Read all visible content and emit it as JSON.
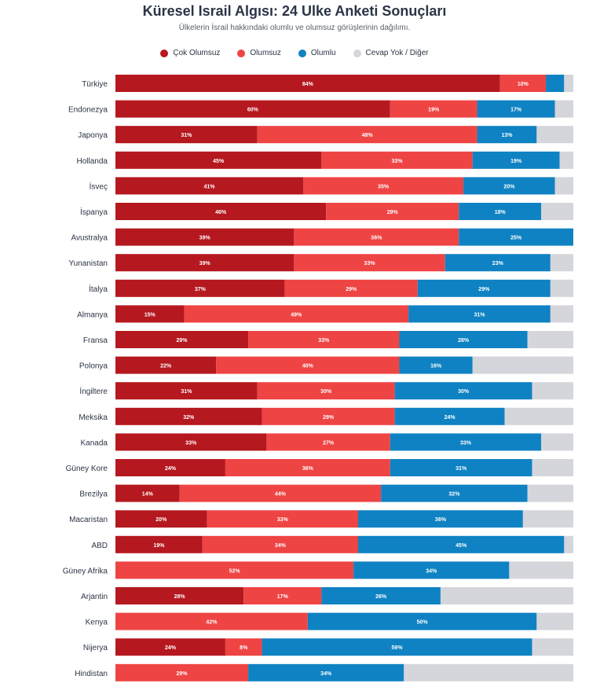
{
  "header": {
    "title": "Küresel Israil Algısı: 24 Ulke Anketi Sonuçları",
    "subtitle": "Ülkelerin İsrail hakkındaki olumlu ve olumsuz görüşlerinin dağılımı."
  },
  "colors": {
    "cok_olumsuz": "#b5181f",
    "olumsuz": "#ef4444",
    "olumlu": "#0f82c3",
    "cevap_yok": "#d4d6db"
  },
  "chart_data": {
    "type": "bar",
    "orientation": "horizontal-stacked",
    "xlim": [
      0,
      100
    ],
    "legend_position": "top-center",
    "categories": [
      "Türkiye",
      "Endonezya",
      "Japonya",
      "Hollanda",
      "İsveç",
      "İspanya",
      "Avustralya",
      "Yunanistan",
      "İtalya",
      "Almanya",
      "Fransa",
      "Polonya",
      "İngiltere",
      "Meksika",
      "Kanada",
      "Güney Kore",
      "Brezilya",
      "Macaristan",
      "ABD",
      "Güney Afrika",
      "Arjantin",
      "Kenya",
      "Nijerya",
      "Hindistan"
    ],
    "series": [
      {
        "name": "Çok Olumsuz",
        "values": [
          84,
          60,
          31,
          45,
          41,
          46,
          39,
          39,
          37,
          15,
          29,
          22,
          31,
          32,
          33,
          24,
          14,
          20,
          19,
          0,
          28,
          0,
          24,
          0
        ]
      },
      {
        "name": "Olumsuz",
        "values": [
          10,
          19,
          48,
          33,
          35,
          29,
          36,
          33,
          29,
          49,
          33,
          40,
          30,
          29,
          27,
          36,
          44,
          33,
          34,
          52,
          17,
          42,
          8,
          29
        ]
      },
      {
        "name": "Olumlu",
        "values": [
          4,
          17,
          13,
          19,
          20,
          18,
          25,
          23,
          29,
          31,
          28,
          16,
          30,
          24,
          33,
          31,
          32,
          36,
          45,
          34,
          26,
          50,
          59,
          34
        ]
      },
      {
        "name": "Cevap Yok / Diğer",
        "values": [
          2,
          4,
          8,
          3,
          4,
          7,
          0,
          5,
          5,
          5,
          10,
          22,
          9,
          15,
          7,
          9,
          10,
          11,
          2,
          14,
          29,
          8,
          9,
          37
        ]
      }
    ]
  }
}
